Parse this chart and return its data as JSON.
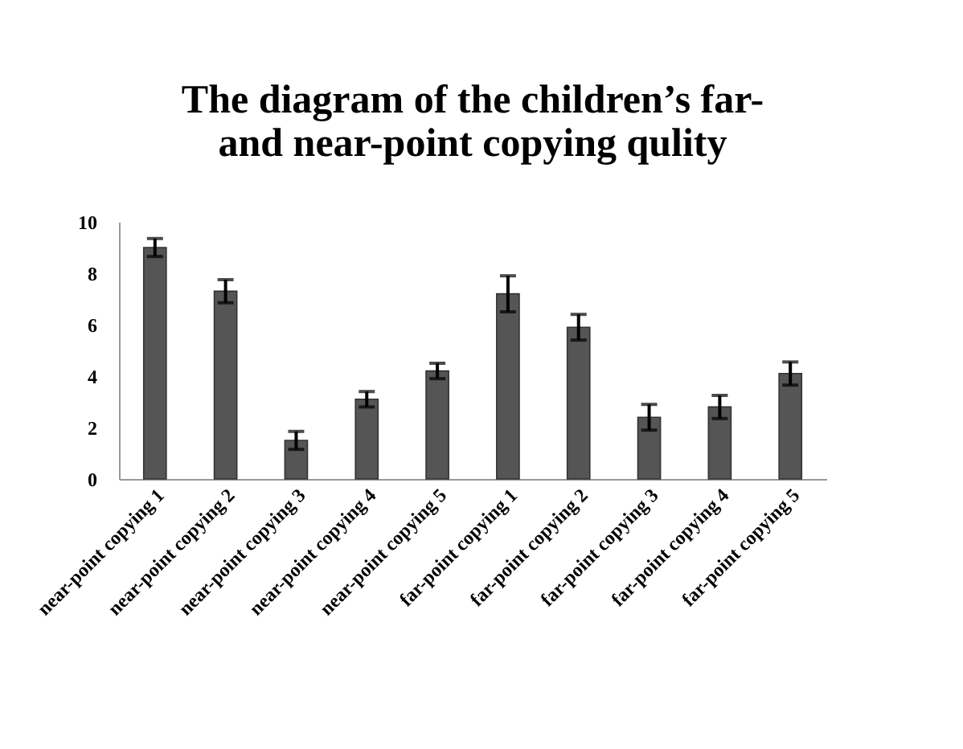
{
  "chart_data": {
    "type": "bar",
    "title": [
      "The diagram of the children’s far-",
      "and near-point copying qulity"
    ],
    "categories": [
      "near-point copying 1",
      "near-point copying 2",
      "near-point copying 3",
      "near-point copying 4",
      "near-point copying 5",
      "far-point copying 1",
      "far-point copying 2",
      "far-point copying 3",
      "far-point copying 4",
      "far-point copying 5"
    ],
    "values": [
      9.0,
      7.3,
      1.5,
      3.1,
      4.2,
      7.2,
      5.9,
      2.4,
      2.8,
      4.1
    ],
    "errors": [
      0.35,
      0.45,
      0.35,
      0.3,
      0.3,
      0.7,
      0.5,
      0.5,
      0.45,
      0.45
    ],
    "color": "#555555",
    "ylim": [
      0,
      10
    ],
    "yticks": [
      0,
      2,
      4,
      6,
      8,
      10
    ],
    "grid": false
  }
}
